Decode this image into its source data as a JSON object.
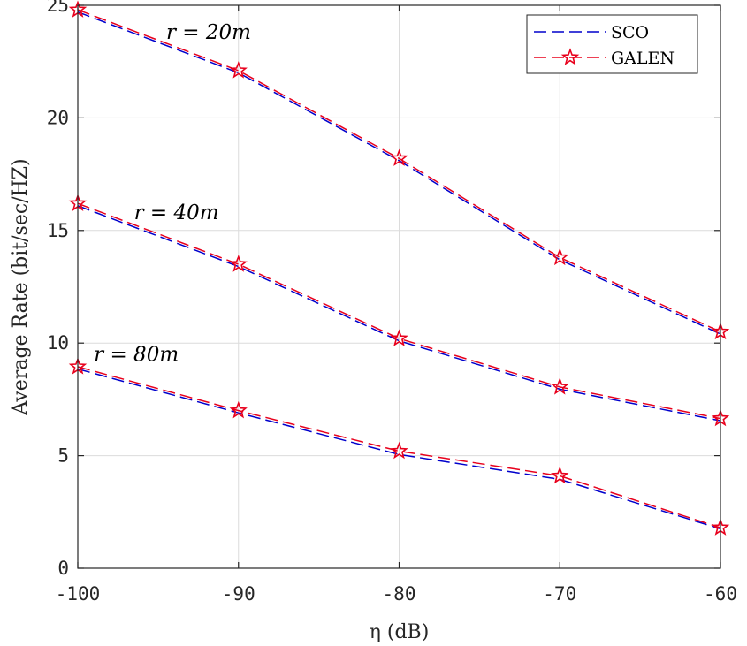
{
  "chart_data": {
    "type": "line",
    "xlabel": "η (dB)",
    "ylabel": "Average Rate (bit/sec/HZ)",
    "xlim": [
      -100,
      -60
    ],
    "ylim": [
      0,
      25
    ],
    "xticks": [
      -100,
      -90,
      -80,
      -70,
      -60
    ],
    "yticks": [
      0,
      5,
      10,
      15,
      20,
      25
    ],
    "x": [
      -100,
      -90,
      -80,
      -70,
      -60
    ],
    "grid": true,
    "legend_position": "top-right",
    "legend": [
      "SCO",
      "GALEN"
    ],
    "series": [
      {
        "name": "SCO",
        "group": "r = 20m",
        "color": "#0000cc",
        "marker": "none",
        "values": [
          24.7,
          22.0,
          18.1,
          13.7,
          10.4
        ]
      },
      {
        "name": "GALEN",
        "group": "r = 20m",
        "color": "#e8001c",
        "marker": "star",
        "values": [
          24.8,
          22.1,
          18.2,
          13.8,
          10.5
        ]
      },
      {
        "name": "SCO",
        "group": "r = 40m",
        "color": "#0000cc",
        "marker": "none",
        "values": [
          16.1,
          13.4,
          10.1,
          7.95,
          6.55
        ]
      },
      {
        "name": "GALEN",
        "group": "r = 40m",
        "color": "#e8001c",
        "marker": "star",
        "values": [
          16.2,
          13.5,
          10.2,
          8.05,
          6.65
        ]
      },
      {
        "name": "SCO",
        "group": "r = 80m",
        "color": "#0000cc",
        "marker": "none",
        "values": [
          8.85,
          6.9,
          5.05,
          3.95,
          1.75
        ]
      },
      {
        "name": "GALEN",
        "group": "r = 80m",
        "color": "#e8001c",
        "marker": "star",
        "values": [
          8.95,
          7.0,
          5.2,
          4.1,
          1.8
        ]
      }
    ],
    "annotations": [
      {
        "text": "r = 20m",
        "x": -94.5,
        "y": 23.5
      },
      {
        "text": "r = 40m",
        "x": -96.5,
        "y": 15.5
      },
      {
        "text": "r = 80m",
        "x": -99,
        "y": 9.2
      }
    ]
  }
}
